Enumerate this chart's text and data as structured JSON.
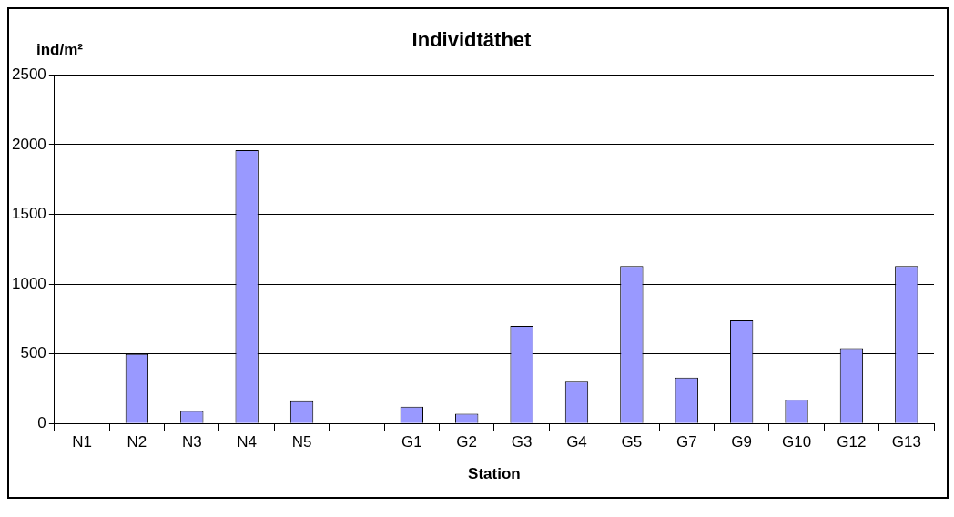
{
  "chart_data": {
    "type": "bar",
    "title": "Individtäthet",
    "ylabel": "ind/m²",
    "xlabel": "Station",
    "categories": [
      "N1",
      "N2",
      "N3",
      "N4",
      "N5",
      null,
      "G1",
      "G2",
      "G3",
      "G4",
      "G5",
      "G7",
      "G9",
      "G10",
      "G12",
      "G13"
    ],
    "values": [
      0,
      500,
      90,
      1960,
      160,
      null,
      120,
      70,
      700,
      300,
      1130,
      330,
      740,
      170,
      540,
      1130
    ],
    "color": "#9999ff",
    "ylim": [
      0,
      2500
    ],
    "yticks": [
      0,
      500,
      1000,
      1500,
      2000,
      2500
    ],
    "grid": "y",
    "legend": false
  }
}
